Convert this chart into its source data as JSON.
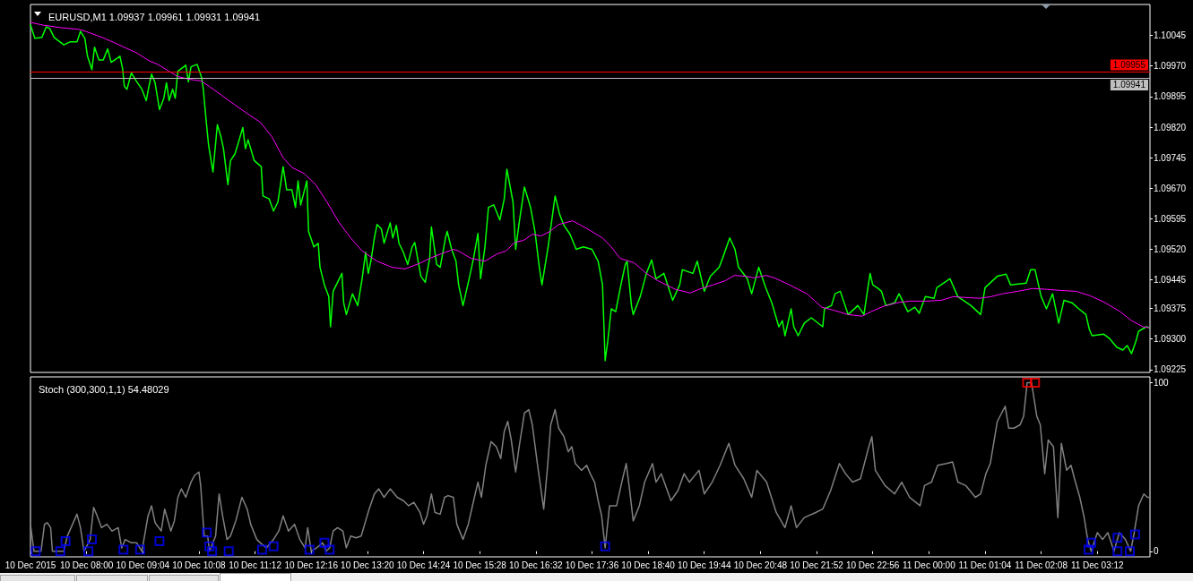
{
  "chart_data": [
    {
      "type": "line",
      "title": "EURUSD,M1 1.09937 1.09961 1.09931 1.09941",
      "xlim": [
        "2015-12-10T06:56",
        "2015-12-11T04:12"
      ],
      "ylim": [
        1.09218,
        1.10121
      ],
      "yticks": [
        1.10045,
        {
          "value": 1.0997,
          "label": "1.09970"
        },
        1.09895,
        {
          "value": 1.0982,
          "label": "1.09820"
        },
        1.09745,
        {
          "value": 1.0967,
          "label": "1.09670"
        },
        1.09595,
        {
          "value": 1.0952,
          "label": "1.09520"
        },
        1.09445,
        1.09375,
        {
          "value": 1.093,
          "label": "1.09300"
        },
        1.09225
      ],
      "tick_labels": "y",
      "ref_lines": [
        {
          "axis": "y",
          "value": 1.09955,
          "label": "1.09955",
          "color": "#ff0000"
        },
        {
          "axis": "y",
          "value": 1.09941,
          "label": "1.09941",
          "color": "#c0c0c0"
        }
      ],
      "series": [
        {
          "color": "#00ff00",
          "x": [
            "2015-12-10T06:56",
            "2015-12-10T07:01",
            "2015-12-10T07:09",
            "2015-12-10T07:14",
            "2015-12-10T07:18",
            "2015-12-10T07:23",
            "2015-12-10T07:34",
            "2015-12-10T07:41",
            "2015-12-10T07:49",
            "2015-12-10T07:53",
            "2015-12-10T07:58",
            "2015-12-10T08:01",
            "2015-12-10T08:06",
            "2015-12-10T08:09",
            "2015-12-10T08:14",
            "2015-12-10T08:19",
            "2015-12-10T08:24",
            "2015-12-10T08:28",
            "2015-12-10T08:38",
            "2015-12-10T08:41",
            "2015-12-10T08:43",
            "2015-12-10T08:46",
            "2015-12-10T08:51",
            "2015-12-10T08:56",
            "2015-12-10T09:03",
            "2015-12-10T09:08",
            "2015-12-10T09:11",
            "2015-12-10T09:14",
            "2015-12-10T09:18",
            "2015-12-10T09:23",
            "2015-12-10T09:28",
            "2015-12-10T09:31",
            "2015-12-10T09:34",
            "2015-12-10T09:38",
            "2015-12-10T09:41",
            "2015-12-10T09:44",
            "2015-12-10T09:53",
            "2015-12-10T09:56",
            "2015-12-10T09:59",
            "2015-12-10T10:06",
            "2015-12-10T10:11",
            "2015-12-10T10:13",
            "2015-12-10T10:16",
            "2015-12-10T10:19",
            "2015-12-10T10:24",
            "2015-12-10T10:29",
            "2015-12-10T10:33",
            "2015-12-10T10:36",
            "2015-12-10T10:41",
            "2015-12-10T10:44",
            "2015-12-10T10:49",
            "2015-12-10T10:53",
            "2015-12-10T10:58",
            "2015-12-10T11:01",
            "2015-12-10T11:04",
            "2015-12-10T11:11",
            "2015-12-10T11:19",
            "2015-12-10T11:21",
            "2015-12-10T11:28",
            "2015-12-10T11:33",
            "2015-12-10T11:38",
            "2015-12-10T11:41",
            "2015-12-10T11:44",
            "2015-12-10T11:48",
            "2015-12-10T11:54",
            "2015-12-10T11:58",
            "2015-12-10T12:01",
            "2015-12-10T12:04",
            "2015-12-10T12:11",
            "2015-12-10T12:13",
            "2015-12-10T12:19",
            "2015-12-10T12:24",
            "2015-12-10T12:26",
            "2015-12-10T12:31",
            "2015-12-10T12:36",
            "2015-12-10T12:38",
            "2015-12-10T12:41",
            "2015-12-10T12:46",
            "2015-12-10T12:51",
            "2015-12-10T12:53",
            "2015-12-10T12:56",
            "2015-12-10T13:03",
            "2015-12-10T13:09",
            "2015-12-10T13:14",
            "2015-12-10T13:18",
            "2015-12-10T13:21",
            "2015-12-10T13:24",
            "2015-12-10T13:28",
            "2015-12-10T13:31",
            "2015-12-10T13:36",
            "2015-12-10T13:39",
            "2015-12-10T13:46",
            "2015-12-10T13:49",
            "2015-12-10T13:53",
            "2015-12-10T13:56",
            "2015-12-10T14:01",
            "2015-12-10T14:06",
            "2015-12-10T14:11",
            "2015-12-10T14:14",
            "2015-12-10T14:21",
            "2015-12-10T14:26",
            "2015-12-10T14:31",
            "2015-12-10T14:33",
            "2015-12-10T14:39",
            "2015-12-10T14:43",
            "2015-12-10T14:49",
            "2015-12-10T14:51",
            "2015-12-10T14:56",
            "2015-12-10T15:01",
            "2015-12-10T15:04",
            "2015-12-10T15:09",
            "2015-12-10T15:16",
            "2015-12-10T15:21",
            "2015-12-10T15:26",
            "2015-12-10T15:29",
            "2015-12-10T15:34",
            "2015-12-10T15:38",
            "2015-12-10T15:44",
            "2015-12-10T15:51",
            "2015-12-10T15:56",
            "2015-12-10T15:59",
            "2015-12-10T16:06",
            "2015-12-10T16:09",
            "2015-12-10T16:13",
            "2015-12-10T16:19",
            "2015-12-10T16:26",
            "2015-12-10T16:31",
            "2015-12-10T16:36",
            "2015-12-10T16:39",
            "2015-12-10T16:46",
            "2015-12-10T16:54",
            "2015-12-10T16:59",
            "2015-12-10T17:04",
            "2015-12-10T17:11",
            "2015-12-10T17:18",
            "2015-12-10T17:26",
            "2015-12-10T17:36",
            "2015-12-10T17:43",
            "2015-12-10T17:48",
            "2015-12-10T17:51",
            "2015-12-10T17:54",
            "2015-12-10T17:58",
            "2015-12-10T18:03",
            "2015-12-10T18:09",
            "2015-12-10T18:14",
            "2015-12-10T18:16",
            "2015-12-10T18:21",
            "2015-12-10T18:23",
            "2015-12-10T18:31",
            "2015-12-10T18:38",
            "2015-12-10T18:44",
            "2015-12-10T18:49",
            "2015-12-10T18:58",
            "2015-12-10T19:08",
            "2015-12-10T19:16",
            "2015-12-10T19:19",
            "2015-12-10T19:31",
            "2015-12-10T19:36",
            "2015-12-10T19:44",
            "2015-12-10T19:51",
            "2015-12-10T20:01",
            "2015-12-10T20:06",
            "2015-12-10T20:13",
            "2015-12-10T20:19",
            "2015-12-10T20:23",
            "2015-12-10T20:33",
            "2015-12-10T20:38",
            "2015-12-10T20:46",
            "2015-12-10T20:54",
            "2015-12-10T21:01",
            "2015-12-10T21:09",
            "2015-12-10T21:13",
            "2015-12-10T21:16",
            "2015-12-10T21:23",
            "2015-12-10T21:26",
            "2015-12-10T21:31",
            "2015-12-10T21:38",
            "2015-12-10T21:46",
            "2015-12-10T21:59",
            "2015-12-10T22:01",
            "2015-12-10T22:09",
            "2015-12-10T22:13",
            "2015-12-10T22:19",
            "2015-12-10T22:28",
            "2015-12-10T22:39",
            "2015-12-10T22:46",
            "2015-12-10T22:49",
            "2015-12-10T22:53",
            "2015-12-10T22:56",
            "2015-12-10T23:01",
            "2015-12-10T23:06",
            "2015-12-10T23:11",
            "2015-12-10T23:21",
            "2015-12-10T23:26",
            "2015-12-10T23:36",
            "2015-12-10T23:44",
            "2015-12-10T23:49",
            "2015-12-10T23:56",
            "2015-12-11T00:06",
            "2015-12-11T00:09",
            "2015-12-11T00:24",
            "2015-12-11T00:33",
            "2015-12-11T00:48",
            "2015-12-11T00:59",
            "2015-12-11T01:04",
            "2015-12-11T01:18",
            "2015-12-11T01:28",
            "2015-12-11T01:33",
            "2015-12-11T01:51",
            "2015-12-11T01:56",
            "2015-12-11T02:01",
            "2015-12-11T02:08",
            "2015-12-11T02:14",
            "2015-12-11T02:21",
            "2015-12-11T02:28",
            "2015-12-11T02:34",
            "2015-12-11T02:43",
            "2015-12-11T02:51",
            "2015-12-11T02:59",
            "2015-12-11T03:03",
            "2015-12-11T03:06",
            "2015-12-11T03:19",
            "2015-12-11T03:26",
            "2015-12-11T03:34",
            "2015-12-11T03:41",
            "2015-12-11T03:46",
            "2015-12-11T03:51",
            "2015-12-11T03:56",
            "2015-12-11T03:59",
            "2015-12-11T04:08",
            "2015-12-11T04:11"
          ],
          "values": [
            1.10071,
            1.10038,
            1.1004,
            1.10066,
            1.10062,
            1.1004,
            1.10022,
            1.10029,
            1.10029,
            1.10055,
            1.10038,
            1.09994,
            1.09961,
            1.10016,
            1.09985,
            1.09985,
            1.10012,
            1.09979,
            1.09994,
            1.09963,
            1.0992,
            1.09913,
            1.09953,
            1.09935,
            1.09913,
            1.09885,
            1.0992,
            1.0995,
            1.09929,
            1.09863,
            1.09891,
            1.09929,
            1.09885,
            1.09913,
            1.09891,
            1.09957,
            1.09972,
            1.09931,
            1.09968,
            1.09974,
            1.09942,
            1.09913,
            1.09841,
            1.09776,
            1.0971,
            1.09826,
            1.09797,
            1.09767,
            1.09679,
            1.09738,
            1.09754,
            1.09782,
            1.09819,
            1.09767,
            1.09789,
            1.09738,
            1.09723,
            1.09651,
            1.09644,
            1.09614,
            1.09636,
            1.09679,
            1.09723,
            1.09666,
            1.09666,
            1.09623,
            1.09688,
            1.09629,
            1.09688,
            1.09564,
            1.09526,
            1.09535,
            1.09476,
            1.09433,
            1.09404,
            1.0933,
            1.09417,
            1.09439,
            1.09461,
            1.09389,
            1.0936,
            1.09411,
            1.09382,
            1.09448,
            1.09513,
            1.09461,
            1.09491,
            1.09548,
            1.09581,
            1.0957,
            1.09535,
            1.09585,
            1.09548,
            1.09579,
            1.09535,
            1.09513,
            1.09483,
            1.09526,
            1.09537,
            1.09454,
            1.09439,
            1.09498,
            1.09575,
            1.09483,
            1.09476,
            1.09548,
            1.09564,
            1.0952,
            1.09491,
            1.09433,
            1.09382,
            1.09448,
            1.09498,
            1.09559,
            1.09448,
            1.09526,
            1.09623,
            1.09629,
            1.09592,
            1.09644,
            1.09717,
            1.09636,
            1.0952,
            1.09585,
            1.09673,
            1.09623,
            1.09564,
            1.09476,
            1.09433,
            1.09526,
            1.09651,
            1.09607,
            1.09579,
            1.09557,
            1.0952,
            1.09526,
            1.0952,
            1.09491,
            1.09433,
            1.09247,
            1.09295,
            1.09374,
            1.09367,
            1.09433,
            1.09483,
            1.09491,
            1.09382,
            1.0936,
            1.09404,
            1.09461,
            1.09494,
            1.09448,
            1.09461,
            1.09395,
            1.09433,
            1.0947,
            1.09461,
            1.09491,
            1.09417,
            1.09454,
            1.09476,
            1.09505,
            1.09548,
            1.0952,
            1.09476,
            1.09448,
            1.09411,
            1.09476,
            1.09426,
            1.09389,
            1.0933,
            1.09345,
            1.09308,
            1.09374,
            1.0933,
            1.09308,
            1.09339,
            1.09352,
            1.0933,
            1.09374,
            1.09382,
            1.09411,
            1.09417,
            1.0936,
            1.09382,
            1.0936,
            1.09404,
            1.09461,
            1.09433,
            1.09426,
            1.09417,
            1.09382,
            1.09389,
            1.09411,
            1.09367,
            1.09378,
            1.09363,
            1.09404,
            1.094,
            1.09426,
            1.09448,
            1.09404,
            1.09382,
            1.0936,
            1.09426,
            1.09454,
            1.09459,
            1.09433,
            1.09437,
            1.0947,
            1.0947,
            1.09404,
            1.09374,
            1.09411,
            1.09339,
            1.09395,
            1.09389,
            1.09374,
            1.0936,
            1.09323,
            1.09308,
            1.09312,
            1.09301,
            1.0928,
            1.09273,
            1.09284,
            1.09264,
            1.09295,
            1.09319,
            1.0933,
            1.09328
          ]
        },
        {
          "color": "#ff00ff",
          "x": [
            "2015-12-10T06:56",
            "2015-12-10T07:11",
            "2015-12-10T07:31",
            "2015-12-10T07:51",
            "2015-12-10T07:59",
            "2015-12-10T08:18",
            "2015-12-10T08:41",
            "2015-12-10T08:58",
            "2015-12-10T09:11",
            "2015-12-10T09:21",
            "2015-12-10T09:34",
            "2015-12-10T09:44",
            "2015-12-10T09:58",
            "2015-12-10T10:11",
            "2015-12-10T10:21",
            "2015-12-10T10:34",
            "2015-12-10T10:48",
            "2015-12-10T11:04",
            "2015-12-10T11:18",
            "2015-12-10T11:31",
            "2015-12-10T11:44",
            "2015-12-10T11:54",
            "2015-12-10T12:08",
            "2015-12-10T12:21",
            "2015-12-10T12:34",
            "2015-12-10T12:48",
            "2015-12-10T13:01",
            "2015-12-10T13:14",
            "2015-12-10T13:31",
            "2015-12-10T13:48",
            "2015-12-10T14:03",
            "2015-12-10T14:21",
            "2015-12-10T14:31",
            "2015-12-10T14:44",
            "2015-12-10T14:58",
            "2015-12-10T15:04",
            "2015-12-10T15:18",
            "2015-12-10T15:34",
            "2015-12-10T15:48",
            "2015-12-10T15:58",
            "2015-12-10T16:08",
            "2015-12-10T16:18",
            "2015-12-10T16:28",
            "2015-12-10T16:38",
            "2015-12-10T16:48",
            "2015-12-10T16:58",
            "2015-12-10T17:14",
            "2015-12-10T17:31",
            "2015-12-10T17:48",
            "2015-12-10T17:58",
            "2015-12-10T18:08",
            "2015-12-10T18:24",
            "2015-12-10T18:38",
            "2015-12-10T18:51",
            "2015-12-10T19:11",
            "2015-12-10T19:28",
            "2015-12-10T19:38",
            "2015-12-10T19:54",
            "2015-12-10T20:08",
            "2015-12-10T20:18",
            "2015-12-10T20:31",
            "2015-12-10T20:41",
            "2015-12-10T20:54",
            "2015-12-10T21:04",
            "2015-12-10T21:21",
            "2015-12-10T21:41",
            "2015-12-10T21:58",
            "2015-12-10T22:11",
            "2015-12-10T22:28",
            "2015-12-10T22:44",
            "2015-12-10T22:54",
            "2015-12-10T23:08",
            "2015-12-10T23:24",
            "2015-12-10T23:38",
            "2015-12-10T23:58",
            "2015-12-11T00:14",
            "2015-12-11T00:28",
            "2015-12-11T00:41",
            "2015-12-11T00:58",
            "2015-12-11T01:11",
            "2015-12-11T01:24",
            "2015-12-11T01:41",
            "2015-12-11T01:58",
            "2015-12-11T02:14",
            "2015-12-11T02:31",
            "2015-12-11T02:48",
            "2015-12-11T03:04",
            "2015-12-11T03:21",
            "2015-12-11T03:38",
            "2015-12-11T03:51",
            "2015-12-11T04:04",
            "2015-12-11T04:11"
          ],
          "values": [
            1.10077,
            1.1007,
            1.10064,
            1.1006,
            1.10055,
            1.1004,
            1.10018,
            1.10001,
            1.09983,
            1.09974,
            1.09957,
            1.09944,
            1.09937,
            1.09933,
            1.09918,
            1.09898,
            1.09876,
            1.09852,
            1.09832,
            1.09797,
            1.09745,
            1.09721,
            1.09706,
            1.09679,
            1.09636,
            1.09585,
            1.09548,
            1.09516,
            1.09491,
            1.09476,
            1.09472,
            1.09487,
            1.09498,
            1.09509,
            1.0952,
            1.09516,
            1.09498,
            1.09491,
            1.09509,
            1.09516,
            1.09537,
            1.09542,
            1.09557,
            1.09553,
            1.09564,
            1.09581,
            1.0959,
            1.0957,
            1.09548,
            1.09526,
            1.09498,
            1.09487,
            1.09461,
            1.09443,
            1.09422,
            1.09413,
            1.09422,
            1.09433,
            1.09443,
            1.09456,
            1.09454,
            1.0945,
            1.09456,
            1.0945,
            1.09433,
            1.09411,
            1.09378,
            1.09371,
            1.0936,
            1.09356,
            1.09367,
            1.0938,
            1.09389,
            1.09393,
            1.09393,
            1.09395,
            1.09404,
            1.09402,
            1.094,
            1.09404,
            1.09411,
            1.09417,
            1.09424,
            1.09422,
            1.09419,
            1.09417,
            1.09406,
            1.09389,
            1.09367,
            1.09345,
            1.0933,
            1.09328
          ]
        }
      ]
    },
    {
      "type": "line",
      "title": "Stoch (300,300,1,1) 54.48029",
      "xlim": [
        "2015-12-10T06:56",
        "2015-12-11T04:12"
      ],
      "ylim": [
        -3.3,
        103.4
      ],
      "xticks": [
        {
          "value": "2015-12-10T06:56",
          "label": "10 Dec 2015"
        },
        {
          "value": "2015-12-10T08:00",
          "label": "10 Dec 08:00"
        },
        {
          "value": "2015-12-10T09:04",
          "label": "10 Dec 09:04"
        },
        {
          "value": "2015-12-10T10:08",
          "label": "10 Dec 10:08"
        },
        {
          "value": "2015-12-10T11:12",
          "label": "10 Dec 11:12"
        },
        {
          "value": "2015-12-10T12:16",
          "label": "10 Dec 12:16"
        },
        {
          "value": "2015-12-10T13:20",
          "label": "10 Dec 13:20"
        },
        {
          "value": "2015-12-10T14:24",
          "label": "10 Dec 14:24"
        },
        {
          "value": "2015-12-10T15:28",
          "label": "10 Dec 15:28"
        },
        {
          "value": "2015-12-10T16:32",
          "label": "10 Dec 16:32"
        },
        {
          "value": "2015-12-10T17:36",
          "label": "10 Dec 17:36"
        },
        {
          "value": "2015-12-10T18:40",
          "label": "10 Dec 18:40"
        },
        {
          "value": "2015-12-10T19:44",
          "label": "10 Dec 19:44"
        },
        {
          "value": "2015-12-10T20:48",
          "label": "10 Dec 20:48"
        },
        {
          "value": "2015-12-10T21:52",
          "label": "10 Dec 21:52"
        },
        {
          "value": "2015-12-10T22:56",
          "label": "10 Dec 22:56"
        },
        {
          "value": "2015-12-11T00:00",
          "label": "11 Dec 00:00"
        },
        {
          "value": "2015-12-11T01:04",
          "label": "11 Dec 01:04"
        },
        {
          "value": "2015-12-11T02:08",
          "label": "11 Dec 02:08"
        },
        {
          "value": "2015-12-11T03:12",
          "label": "11 Dec 03:12"
        }
      ],
      "yticks": [
        0,
        100
      ],
      "series": [
        {
          "color": "#808080",
          "x": [
            "2015-12-10T06:56",
            "2015-12-10T07:00",
            "2015-12-10T07:08",
            "2015-12-10T07:12",
            "2015-12-10T07:15",
            "2015-12-10T07:19",
            "2015-12-10T07:21",
            "2015-12-10T07:34",
            "2015-12-10T07:38",
            "2015-12-10T07:49",
            "2015-12-10T07:53",
            "2015-12-10T07:57",
            "2015-12-10T08:04",
            "2015-12-10T08:08",
            "2015-12-10T08:12",
            "2015-12-10T08:17",
            "2015-12-10T08:23",
            "2015-12-10T08:29",
            "2015-12-10T08:36",
            "2015-12-10T08:40",
            "2015-12-10T08:44",
            "2015-12-10T08:51",
            "2015-12-10T08:57",
            "2015-12-10T09:03",
            "2015-12-10T09:10",
            "2015-12-10T09:14",
            "2015-12-10T09:18",
            "2015-12-10T09:25",
            "2015-12-10T09:29",
            "2015-12-10T09:36",
            "2015-12-10T09:40",
            "2015-12-10T09:44",
            "2015-12-10T09:48",
            "2015-12-10T09:53",
            "2015-12-10T09:59",
            "2015-12-10T10:03",
            "2015-12-10T10:08",
            "2015-12-10T10:10",
            "2015-12-10T10:14",
            "2015-12-10T10:18",
            "2015-12-10T10:20",
            "2015-12-10T10:27",
            "2015-12-10T10:31",
            "2015-12-10T10:35",
            "2015-12-10T10:40",
            "2015-12-10T10:44",
            "2015-12-10T10:50",
            "2015-12-10T10:57",
            "2015-12-10T11:03",
            "2015-12-10T11:07",
            "2015-12-10T11:14",
            "2015-12-10T11:18",
            "2015-12-10T11:25",
            "2015-12-10T11:33",
            "2015-12-10T11:39",
            "2015-12-10T11:44",
            "2015-12-10T11:50",
            "2015-12-10T11:57",
            "2015-12-10T12:03",
            "2015-12-10T12:09",
            "2015-12-10T12:12",
            "2015-12-10T12:16",
            "2015-12-10T12:22",
            "2015-12-10T12:29",
            "2015-12-10T12:33",
            "2015-12-10T12:37",
            "2015-12-10T12:41",
            "2015-12-10T12:46",
            "2015-12-10T12:52",
            "2015-12-10T12:56",
            "2015-12-10T13:01",
            "2015-12-10T13:07",
            "2015-12-10T13:13",
            "2015-12-10T13:18",
            "2015-12-10T13:22",
            "2015-12-10T13:28",
            "2015-12-10T13:33",
            "2015-12-10T13:39",
            "2015-12-10T13:46",
            "2015-12-10T13:54",
            "2015-12-10T14:01",
            "2015-12-10T14:07",
            "2015-12-10T14:13",
            "2015-12-10T14:20",
            "2015-12-10T14:24",
            "2015-12-10T14:28",
            "2015-12-10T14:33",
            "2015-12-10T14:37",
            "2015-12-10T14:43",
            "2015-12-10T14:48",
            "2015-12-10T14:52",
            "2015-12-10T14:58",
            "2015-12-10T15:02",
            "2015-12-10T15:09",
            "2015-12-10T15:15",
            "2015-12-10T15:22",
            "2015-12-10T15:26",
            "2015-12-10T15:30",
            "2015-12-10T15:35",
            "2015-12-10T15:41",
            "2015-12-10T15:47",
            "2015-12-10T15:52",
            "2015-12-10T15:56",
            "2015-12-10T16:00",
            "2015-12-10T16:04",
            "2015-12-10T16:09",
            "2015-12-10T16:13",
            "2015-12-10T16:19",
            "2015-12-10T16:24",
            "2015-12-10T16:28",
            "2015-12-10T16:34",
            "2015-12-10T16:41",
            "2015-12-10T16:45",
            "2015-12-10T16:49",
            "2015-12-10T16:54",
            "2015-12-10T16:58",
            "2015-12-10T17:04",
            "2015-12-10T17:09",
            "2015-12-10T17:13",
            "2015-12-10T17:17",
            "2015-12-10T17:24",
            "2015-12-10T17:30",
            "2015-12-10T17:34",
            "2015-12-10T17:39",
            "2015-12-10T17:43",
            "2015-12-10T17:47",
            "2015-12-10T17:51",
            "2015-12-10T17:56",
            "2015-12-10T18:04",
            "2015-12-10T18:10",
            "2015-12-10T18:15",
            "2015-12-10T18:19",
            "2015-12-10T18:23",
            "2015-12-10T18:30",
            "2015-12-10T18:36",
            "2015-12-10T18:45",
            "2015-12-10T18:49",
            "2015-12-10T18:55",
            "2015-12-10T19:06",
            "2015-12-10T19:14",
            "2015-12-10T19:21",
            "2015-12-10T19:27",
            "2015-12-10T19:38",
            "2015-12-10T19:44",
            "2015-12-10T19:53",
            "2015-12-10T20:02",
            "2015-12-10T20:12",
            "2015-12-10T20:19",
            "2015-12-10T20:29",
            "2015-12-10T20:38",
            "2015-12-10T20:44",
            "2015-12-10T20:55",
            "2015-12-10T21:06",
            "2015-12-10T21:16",
            "2015-12-10T21:23",
            "2015-12-10T21:29",
            "2015-12-10T21:38",
            "2015-12-10T21:51",
            "2015-12-10T21:59",
            "2015-12-10T22:08",
            "2015-12-10T22:18",
            "2015-12-10T22:25",
            "2015-12-10T22:33",
            "2015-12-10T22:42",
            "2015-12-10T22:51",
            "2015-12-10T22:55",
            "2015-12-10T22:59",
            "2015-12-10T23:10",
            "2015-12-10T23:21",
            "2015-12-10T23:29",
            "2015-12-10T23:38",
            "2015-12-10T23:50",
            "2015-12-10T23:55",
            "2015-12-11T00:03",
            "2015-12-11T00:10",
            "2015-12-11T00:20",
            "2015-12-11T00:27",
            "2015-12-11T00:33",
            "2015-12-11T00:42",
            "2015-12-11T00:53",
            "2015-12-11T00:59",
            "2015-12-11T01:05",
            "2015-12-11T01:10",
            "2015-12-11T01:18",
            "2015-12-11T01:27",
            "2015-12-11T01:31",
            "2015-12-11T01:37",
            "2015-12-11T01:44",
            "2015-12-11T01:48",
            "2015-12-11T01:52",
            "2015-12-11T01:57",
            "2015-12-11T02:03",
            "2015-12-11T02:07",
            "2015-12-11T02:12",
            "2015-12-11T02:16",
            "2015-12-11T02:22",
            "2015-12-11T02:27",
            "2015-12-11T02:31",
            "2015-12-11T02:37",
            "2015-12-11T02:42",
            "2015-12-11T02:46",
            "2015-12-11T02:52",
            "2015-12-11T02:57",
            "2015-12-11T03:01",
            "2015-12-11T03:05",
            "2015-12-11T03:12",
            "2015-12-11T03:18",
            "2015-12-11T03:24",
            "2015-12-11T03:31",
            "2015-12-11T03:37",
            "2015-12-11T03:44",
            "2015-12-11T03:50",
            "2015-12-11T03:54",
            "2015-12-11T03:59",
            "2015-12-11T04:05",
            "2015-12-11T04:09",
            "2015-12-11T04:12"
          ],
          "values": [
            16,
            0,
            0,
            16,
            17,
            14,
            0,
            0,
            9,
            22,
            14,
            0,
            7,
            26,
            21,
            14,
            16,
            12,
            14,
            2,
            7,
            5,
            5,
            0,
            21,
            27,
            17,
            12,
            25,
            12,
            18,
            32,
            37,
            32,
            41,
            45,
            47,
            39,
            9,
            9,
            0,
            9,
            34,
            21,
            7,
            9,
            18,
            32,
            25,
            16,
            7,
            5,
            2,
            7,
            12,
            21,
            12,
            16,
            7,
            2,
            14,
            0,
            2,
            5,
            0,
            2,
            12,
            14,
            12,
            2,
            9,
            8,
            9,
            18,
            25,
            34,
            37,
            32,
            37,
            32,
            30,
            27,
            29,
            23,
            16,
            21,
            34,
            23,
            22,
            32,
            33,
            32,
            16,
            7,
            16,
            32,
            41,
            32,
            51,
            65,
            62,
            55,
            71,
            77,
            66,
            47,
            62,
            82,
            84,
            75,
            51,
            25,
            48,
            75,
            84,
            73,
            68,
            59,
            62,
            52,
            48,
            51,
            46,
            41,
            30,
            21,
            2,
            27,
            27,
            41,
            52,
            36,
            18,
            27,
            41,
            52,
            41,
            46,
            30,
            36,
            46,
            41,
            48,
            34,
            41,
            51,
            64,
            51,
            43,
            32,
            48,
            41,
            23,
            14,
            27,
            14,
            20,
            23,
            25,
            36,
            52,
            46,
            41,
            43,
            61,
            68,
            48,
            39,
            34,
            41,
            32,
            27,
            39,
            41,
            51,
            52,
            53,
            41,
            39,
            32,
            34,
            46,
            52,
            77,
            86,
            73,
            73,
            75,
            80,
            100,
            100,
            80,
            75,
            46,
            66,
            62,
            20,
            64,
            48,
            51,
            43,
            32,
            20,
            7,
            0,
            11,
            7,
            11,
            0,
            11,
            7,
            0,
            11,
            27,
            34,
            32,
            32
          ]
        },
        {
          "type": "scatter",
          "marker": "square",
          "color": "#0000ff",
          "x": [
            "2015-12-10T07:02",
            "2015-12-10T07:30",
            "2015-12-10T07:36",
            "2015-12-10T08:02",
            "2015-12-10T08:06",
            "2015-12-10T08:42",
            "2015-12-10T09:01",
            "2015-12-10T09:23",
            "2015-12-10T10:17",
            "2015-12-10T10:20",
            "2015-12-10T10:23",
            "2015-12-10T10:42",
            "2015-12-10T11:20",
            "2015-12-10T11:33",
            "2015-12-10T12:14",
            "2015-12-10T12:31",
            "2015-12-10T12:37",
            "2015-12-10T17:51",
            "2015-12-11T03:02",
            "2015-12-11T03:05",
            "2015-12-11T03:35",
            "2015-12-11T03:35",
            "2015-12-11T03:49",
            "2015-12-11T03:55"
          ],
          "values": [
            0,
            0,
            6,
            0,
            7,
            1,
            1,
            6,
            11,
            3,
            0,
            0,
            1,
            3,
            1,
            5,
            1,
            3,
            1,
            5,
            8,
            0,
            0,
            10
          ]
        },
        {
          "type": "scatter",
          "marker": "square",
          "color": "#ff0000",
          "x": [
            "2015-12-11T01:52",
            "2015-12-11T02:01"
          ],
          "values": [
            100,
            100
          ]
        }
      ]
    }
  ]
}
